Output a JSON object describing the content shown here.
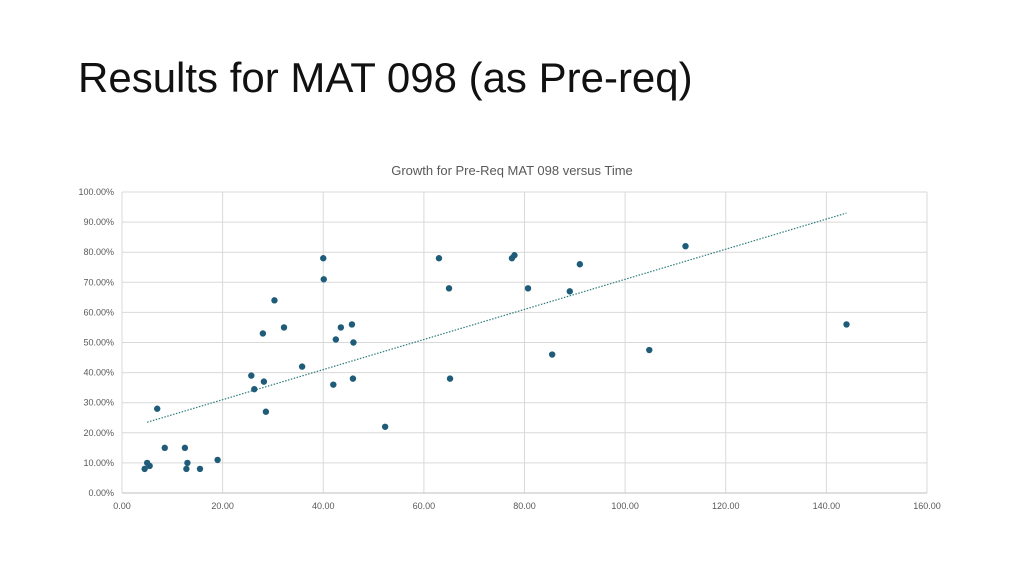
{
  "slide": {
    "title": "Results for MAT 098 (as Pre-req)"
  },
  "chart_data": {
    "type": "scatter",
    "title": "Growth for Pre-Req MAT 098 versus Time",
    "xlabel": "",
    "ylabel": "",
    "xlim": [
      0,
      160
    ],
    "ylim": [
      0,
      1
    ],
    "x_ticks": [
      0,
      20,
      40,
      60,
      80,
      100,
      120,
      140,
      160
    ],
    "x_tick_labels": [
      "0.00",
      "20.00",
      "40.00",
      "60.00",
      "80.00",
      "100.00",
      "120.00",
      "140.00",
      "160.00"
    ],
    "y_ticks": [
      0,
      0.1,
      0.2,
      0.3,
      0.4,
      0.5,
      0.6,
      0.7,
      0.8,
      0.9,
      1.0
    ],
    "y_tick_labels": [
      "0.00%",
      "10.00%",
      "20.00%",
      "30.00%",
      "40.00%",
      "50.00%",
      "60.00%",
      "70.00%",
      "80.00%",
      "90.00%",
      "100.00%"
    ],
    "grid": true,
    "legend": "none",
    "marker_color": "#1f5c7a",
    "trendline": {
      "type": "linear",
      "style": "dotted",
      "color": "#2e7d7b",
      "x_start": 5,
      "y_start": 0.235,
      "x_end": 144,
      "y_end": 0.93
    },
    "series": [
      {
        "points": [
          [
            4.5,
            0.08
          ],
          [
            5,
            0.1
          ],
          [
            5.5,
            0.09
          ],
          [
            7,
            0.28
          ],
          [
            8.5,
            0.15
          ],
          [
            12.5,
            0.15
          ],
          [
            12.8,
            0.08
          ],
          [
            13,
            0.1
          ],
          [
            15.5,
            0.08
          ],
          [
            19,
            0.11
          ],
          [
            25.7,
            0.39
          ],
          [
            26.3,
            0.345
          ],
          [
            28,
            0.53
          ],
          [
            28.2,
            0.37
          ],
          [
            28.6,
            0.27
          ],
          [
            30.3,
            0.64
          ],
          [
            32.2,
            0.55
          ],
          [
            35.8,
            0.42
          ],
          [
            40,
            0.78
          ],
          [
            40.1,
            0.71
          ],
          [
            42,
            0.36
          ],
          [
            42.5,
            0.51
          ],
          [
            43.5,
            0.55
          ],
          [
            45.7,
            0.56
          ],
          [
            45.9,
            0.38
          ],
          [
            46,
            0.5
          ],
          [
            52.3,
            0.22
          ],
          [
            63,
            0.78
          ],
          [
            65,
            0.68
          ],
          [
            65.2,
            0.38
          ],
          [
            77.5,
            0.78
          ],
          [
            78,
            0.79
          ],
          [
            80.7,
            0.68
          ],
          [
            85.5,
            0.46
          ],
          [
            89,
            0.67
          ],
          [
            91,
            0.76
          ],
          [
            104.8,
            0.475
          ],
          [
            112,
            0.82
          ],
          [
            144,
            0.56
          ]
        ]
      }
    ]
  }
}
